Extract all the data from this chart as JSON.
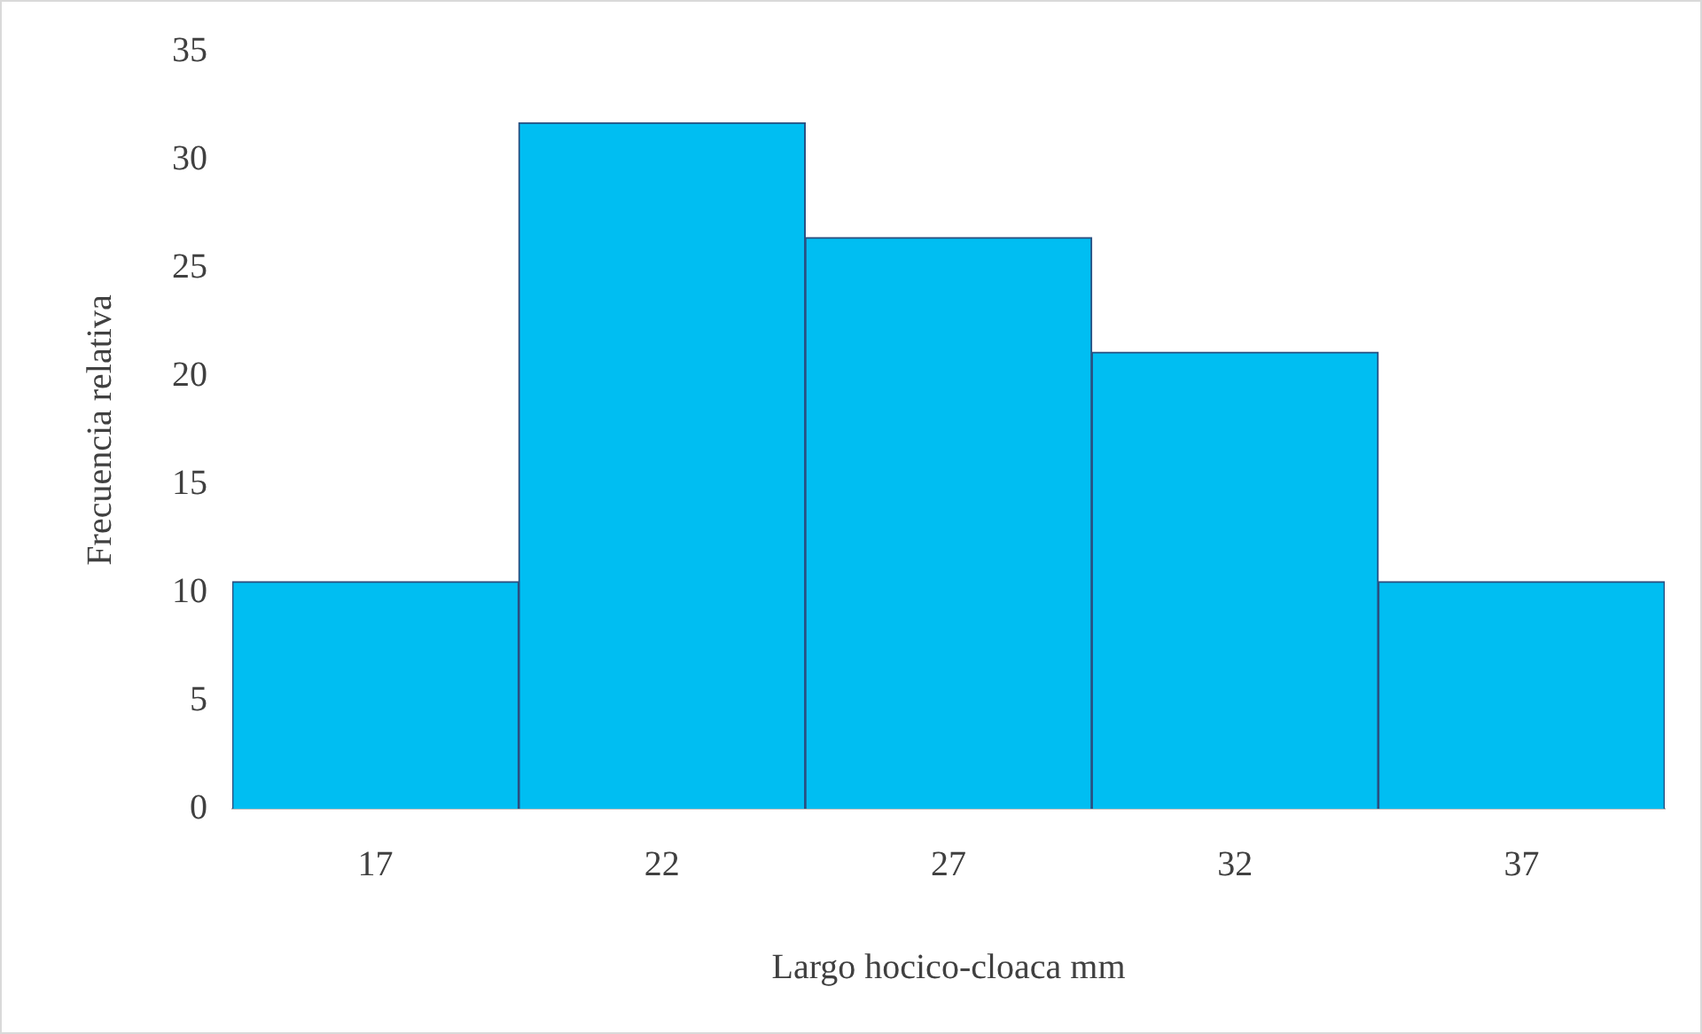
{
  "chart_data": {
    "type": "bar",
    "xlabel": "Largo hocico-cloaca mm",
    "ylabel": "Frecuencia relativa",
    "categories": [
      "17",
      "22",
      "27",
      "32",
      "37"
    ],
    "values": [
      10.5,
      31.7,
      26.4,
      21.1,
      10.5
    ],
    "color": "#00bef2",
    "ylim": [
      0,
      35
    ],
    "yticks": [
      0,
      5,
      10,
      15,
      20,
      25,
      30,
      35
    ],
    "grid": false,
    "legend": false
  }
}
